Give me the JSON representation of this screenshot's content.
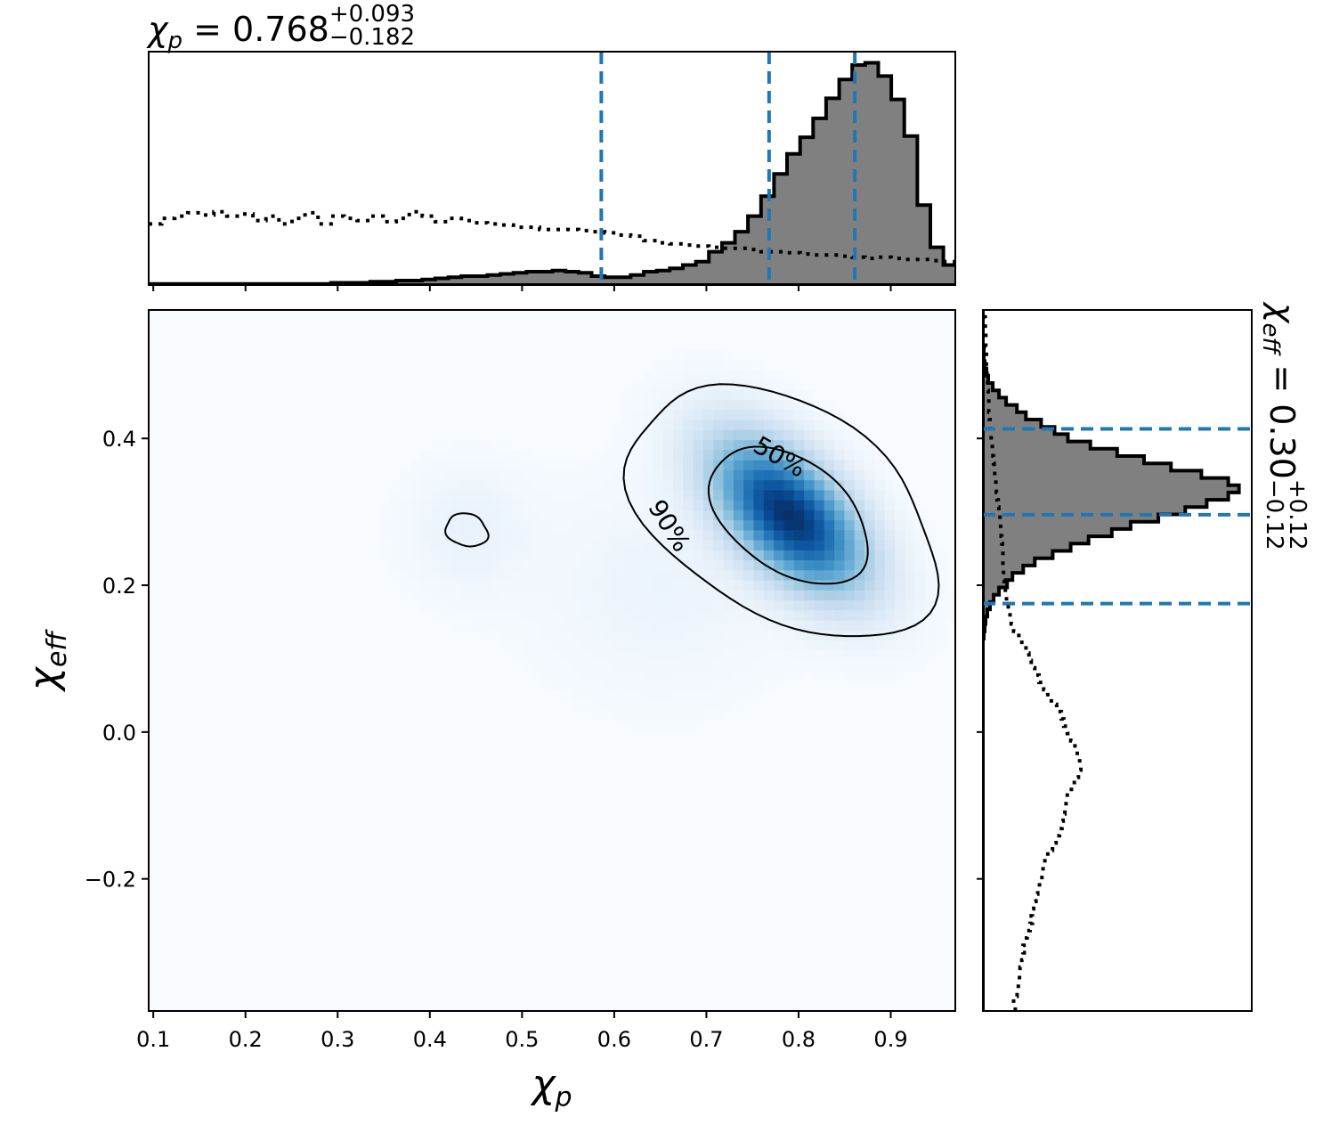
{
  "chart_data": {
    "type": "corner",
    "top_title": {
      "sym": "χ",
      "sub": "p",
      "eq": " = 0.768",
      "sup": "+0.093",
      "low": "−0.182"
    },
    "right_title": {
      "sym": "χ",
      "sub": "eff",
      "eq": " = 0.30",
      "sup": "+0.12",
      "low": "−0.12"
    },
    "xlabel": {
      "sym": "χ",
      "sub": "p"
    },
    "ylabel": {
      "sym": "χ",
      "sub": "eff"
    },
    "xlim": [
      0.095,
      0.97
    ],
    "ylim": [
      -0.38,
      0.575
    ],
    "xticks": [
      0.1,
      0.2,
      0.3,
      0.4,
      0.5,
      0.6,
      0.7,
      0.8,
      0.9
    ],
    "xtick_labels": [
      "0.1",
      "0.2",
      "0.3",
      "0.4",
      "0.5",
      "0.6",
      "0.7",
      "0.8",
      "0.9"
    ],
    "yticks": [
      -0.2,
      0.0,
      0.2,
      0.4
    ],
    "ytick_labels": [
      "−0.2",
      "0.0",
      "0.2",
      "0.4"
    ],
    "contour_labels": [
      "50%",
      "90%"
    ],
    "colors": {
      "fill": "#808080",
      "edge": "#000000",
      "quantile": "#1f77b4",
      "density": "#08306b"
    },
    "chi_p_marginal": {
      "bin_edges": [
        0.095,
        0.9995
      ],
      "counts": [
        1,
        1,
        1,
        1,
        1,
        1,
        1,
        1,
        1,
        1,
        1,
        1,
        1,
        1,
        2,
        2,
        2,
        3,
        3,
        4,
        4,
        5,
        6,
        7,
        8,
        8,
        9,
        10,
        11,
        12,
        12,
        13,
        12,
        11,
        8,
        7,
        7,
        9,
        12,
        13,
        15,
        18,
        21,
        30,
        38,
        48,
        62,
        80,
        100,
        118,
        133,
        150,
        168,
        185,
        198,
        200,
        188,
        167,
        134,
        72,
        34,
        18,
        10,
        6
      ],
      "prior": [
        55,
        60,
        62,
        65,
        63,
        66,
        62,
        64,
        58,
        62,
        55,
        60,
        65,
        55,
        62,
        60,
        58,
        62,
        57,
        60,
        66,
        62,
        57,
        60,
        58,
        56,
        55,
        54,
        52,
        52,
        50,
        50,
        50,
        49,
        48,
        47,
        45,
        44,
        40,
        38,
        37,
        36,
        35,
        34,
        33,
        33,
        32,
        30,
        30,
        29,
        28,
        27,
        27,
        26,
        25,
        24,
        25,
        24,
        23,
        23,
        22,
        21,
        20,
        18
      ],
      "quantiles": [
        0.586,
        0.768,
        0.861
      ]
    },
    "chi_eff_marginal": {
      "bin_edges": [
        -0.38,
        0.575
      ],
      "counts": [
        0,
        0,
        0,
        0,
        0,
        0,
        0,
        0,
        0,
        0,
        0,
        0,
        0,
        0,
        0,
        0,
        0,
        0,
        0,
        0,
        0,
        0,
        0,
        0,
        0,
        0,
        0,
        0,
        0,
        0,
        0,
        0,
        0,
        0,
        0,
        0,
        0,
        0,
        0,
        0,
        0,
        0,
        0,
        0,
        0,
        0,
        0,
        0,
        0,
        0,
        0,
        1,
        2,
        3,
        5,
        8,
        12,
        18,
        27,
        33,
        45,
        58,
        78,
        98,
        118,
        144,
        165,
        196,
        226,
        250,
        274,
        286,
        274,
        244,
        210,
        180,
        150,
        120,
        95,
        80,
        65,
        48,
        38,
        26,
        18,
        11,
        6,
        4,
        2,
        1,
        1,
        0,
        0,
        0,
        0,
        0
      ],
      "prior": [
        55,
        52,
        58,
        60,
        62,
        63,
        66,
        70,
        68,
        74,
        75,
        80,
        84,
        82,
        86,
        90,
        93,
        96,
        100,
        102,
        105,
        110,
        118,
        124,
        130,
        134,
        136,
        139,
        141,
        143,
        150,
        155,
        162,
        166,
        164,
        160,
        156,
        149,
        143,
        137,
        133,
        125,
        116,
        110,
        103,
        95,
        88,
        82,
        78,
        73,
        66,
        61,
        52,
        48,
        46,
        43,
        40,
        38,
        36,
        35,
        35,
        34,
        34,
        33,
        32,
        31,
        30,
        29,
        27,
        26,
        24,
        23,
        22,
        20,
        19,
        18,
        17,
        16,
        14,
        13,
        12,
        11,
        10,
        10,
        9,
        8,
        8,
        7,
        6,
        6,
        6,
        5,
        5,
        4,
        4,
        3
      ],
      "quantiles": [
        0.175,
        0.296,
        0.413
      ]
    },
    "density": {
      "components": [
        {
          "mx": 0.79,
          "my": 0.295,
          "sx": 0.055,
          "sy": 0.07,
          "rho": -0.55,
          "w": 1.0
        },
        {
          "mx": 0.44,
          "my": 0.275,
          "sx": 0.045,
          "sy": 0.06,
          "rho": 0.0,
          "w": 0.05
        },
        {
          "mx": 0.65,
          "my": 0.2,
          "sx": 0.09,
          "sy": 0.1,
          "rho": 0.0,
          "w": 0.04
        }
      ],
      "contour_levels": [
        0.5,
        0.9
      ]
    }
  }
}
